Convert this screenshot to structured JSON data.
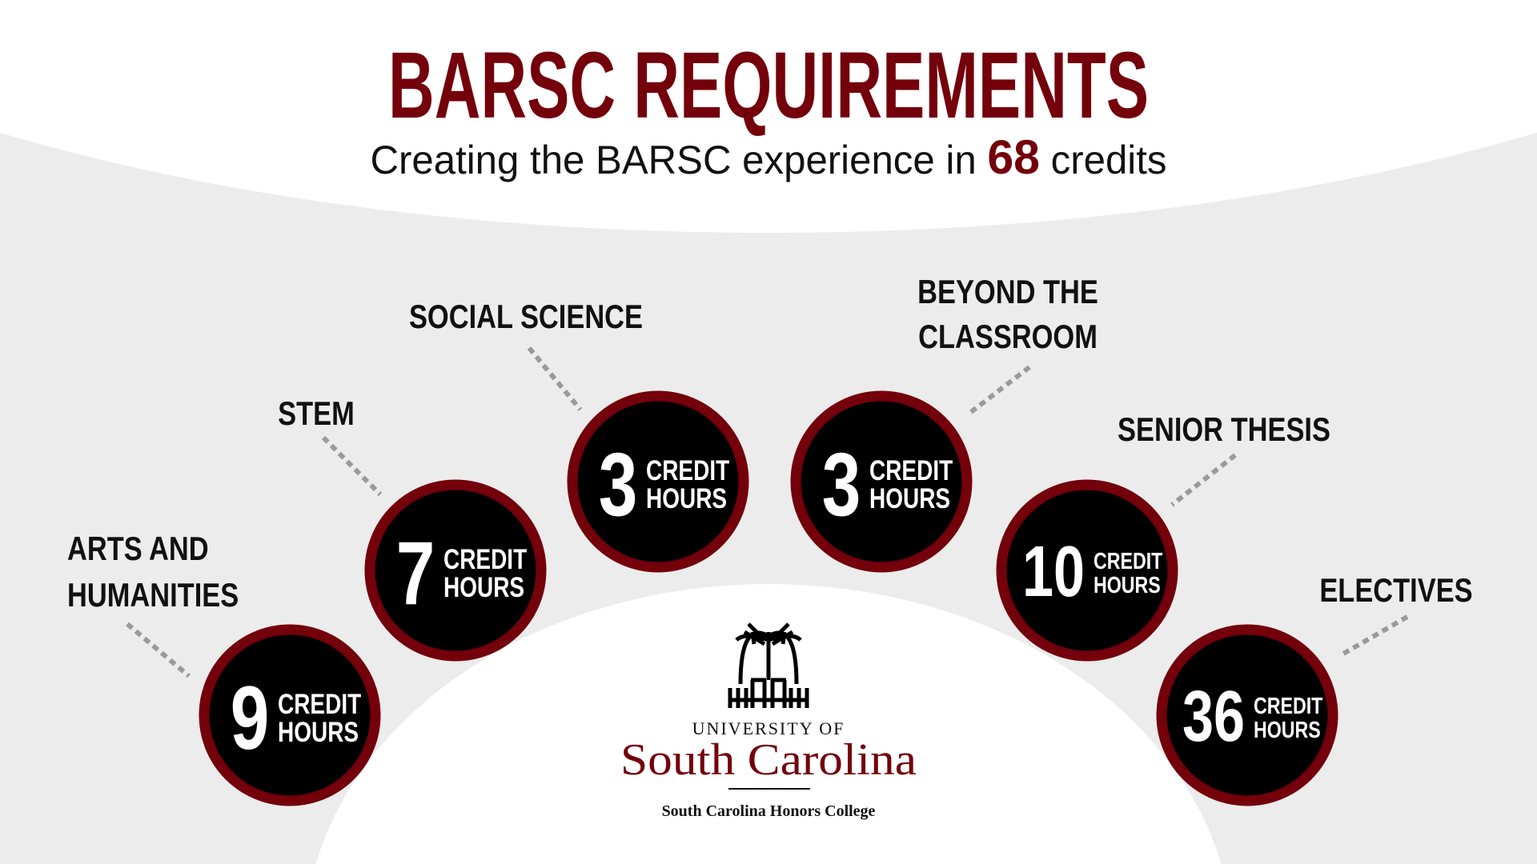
{
  "header": {
    "title": "BARSC REQUIREMENTS",
    "subtitle_before": "Creating the BARSC experience in ",
    "subtitle_number": "68",
    "subtitle_after": " credits"
  },
  "colors": {
    "accent": "#73000a",
    "background": "#ececec",
    "circle_fill": "#000000",
    "dotted_line": "#9a9a9a"
  },
  "requirements": [
    {
      "label": [
        "ARTS AND",
        "HUMANITIES"
      ],
      "hours": "9",
      "unit": [
        "CREDIT",
        "HOURS"
      ]
    },
    {
      "label": [
        "STEM"
      ],
      "hours": "7",
      "unit": [
        "CREDIT",
        "HOURS"
      ]
    },
    {
      "label": [
        "SOCIAL SCIENCE"
      ],
      "hours": "3",
      "unit": [
        "CREDIT",
        "HOURS"
      ]
    },
    {
      "label": [
        "BEYOND THE",
        "CLASSROOM"
      ],
      "hours": "3",
      "unit": [
        "CREDIT",
        "HOURS"
      ]
    },
    {
      "label": [
        "SENIOR THESIS"
      ],
      "hours": "10",
      "unit": [
        "CREDIT",
        "HOURS"
      ]
    },
    {
      "label": [
        "ELECTIVES"
      ],
      "hours": "36",
      "unit": [
        "CREDIT",
        "HOURS"
      ]
    }
  ],
  "logo": {
    "line1": "UNIVERSITY OF",
    "line2": "South Carolina",
    "line3": "South Carolina Honors College"
  }
}
